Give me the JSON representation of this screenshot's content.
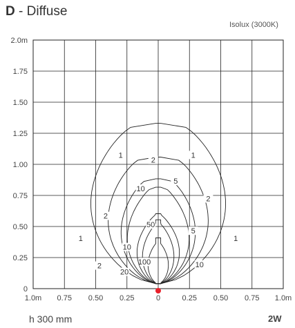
{
  "header": {
    "letter": "D",
    "separator": " - ",
    "name": "Diffuse",
    "subtitle": "Isolux (3000K)"
  },
  "footer": {
    "height_label": "h 300 mm",
    "power_label": "2W"
  },
  "chart_data": {
    "type": "contour",
    "title": "D - Diffuse",
    "subtitle": "Isolux (3000K)",
    "x_ticks": [
      "1.0m",
      "0.75",
      "0.50",
      "0.25",
      "0",
      "0.25",
      "0.50",
      "0.75",
      "1.0m"
    ],
    "y_ticks": [
      "0",
      "0.25",
      "0.50",
      "0.75",
      "1.00",
      "1.25",
      "1.50",
      "1.75",
      "2.0m"
    ],
    "xlim": [
      -1.0,
      1.0
    ],
    "ylim": [
      0,
      2.0
    ],
    "grid": true,
    "source_marker": {
      "x": 0,
      "y": 0,
      "color": "#e8202a"
    },
    "contours": [
      {
        "level": "1",
        "width": 0.62,
        "height": 1.33,
        "shoulder": 0.3,
        "label_positions": [
          [
            -0.3,
            1.07
          ],
          [
            0.28,
            1.07
          ],
          [
            -0.62,
            0.4
          ],
          [
            0.62,
            0.4
          ]
        ]
      },
      {
        "level": "2",
        "width": 0.46,
        "height": 1.05,
        "shoulder": 0.3,
        "label_positions": [
          [
            -0.04,
            1.03
          ],
          [
            0.4,
            0.72
          ],
          [
            -0.42,
            0.58
          ],
          [
            -0.47,
            0.18
          ]
        ]
      },
      {
        "level": "5",
        "width": 0.34,
        "height": 0.87,
        "shoulder": 0.32,
        "label_positions": [
          [
            0.14,
            0.86
          ],
          [
            0.28,
            0.46
          ]
        ]
      },
      {
        "level": "10",
        "width": 0.28,
        "height": 0.8,
        "shoulder": 0.38,
        "label_positions": [
          [
            -0.14,
            0.8
          ],
          [
            -0.25,
            0.33
          ],
          [
            0.33,
            0.19
          ]
        ]
      },
      {
        "level": "20",
        "width": 0.19,
        "height": 0.58,
        "shoulder": 0.44,
        "label_positions": [
          [
            -0.27,
            0.13
          ]
        ]
      },
      {
        "level": "50",
        "width": 0.14,
        "height": 0.53,
        "shoulder": 0.5,
        "label_positions": [
          [
            -0.06,
            0.51
          ]
        ]
      },
      {
        "level": "100",
        "width": 0.09,
        "height": 0.38,
        "shoulder": 0.55,
        "label_positions": [
          [
            -0.11,
            0.21
          ]
        ]
      }
    ],
    "colors": {
      "grid": "#222222",
      "contour": "#222222",
      "text": "#444444"
    }
  }
}
